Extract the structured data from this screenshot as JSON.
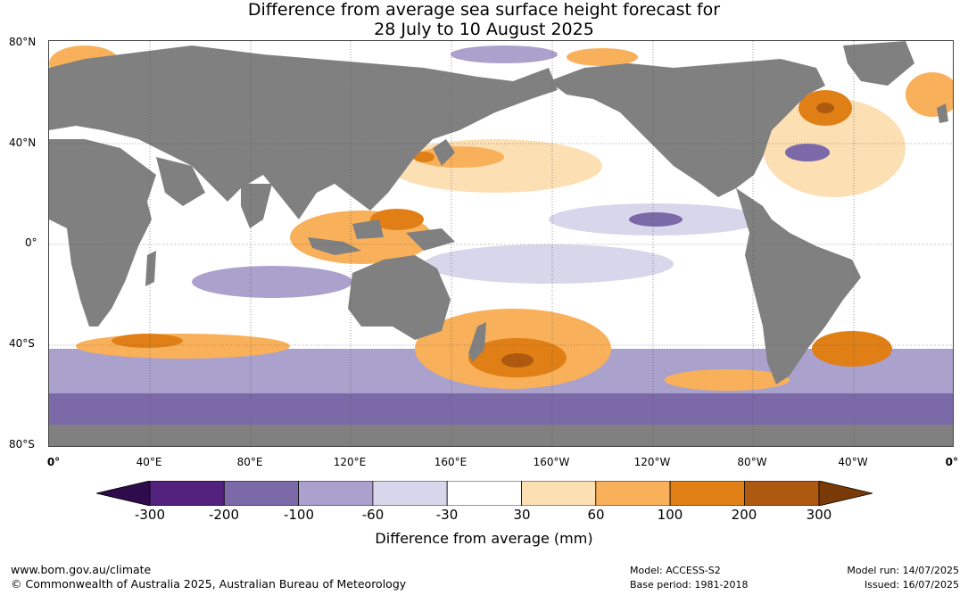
{
  "title": {
    "line1": "Difference from average sea surface height forecast for",
    "line2": "28 July to 10 August 2025"
  },
  "lat_labels": [
    "80°N",
    "40°N",
    "0°",
    "40°S",
    "80°S"
  ],
  "lon_labels": [
    "0°",
    "40°E",
    "80°E",
    "120°E",
    "160°E",
    "160°W",
    "120°W",
    "80°W",
    "40°W",
    "0°"
  ],
  "colorbar": {
    "ticks": [
      "-300",
      "-200",
      "-100",
      "-60",
      "-30",
      "30",
      "60",
      "100",
      "200",
      "300"
    ],
    "label": "Difference from average (mm)",
    "colors": [
      "#2e0b4a",
      "#52227d",
      "#7c69a8",
      "#aaa1cc",
      "#d8d6ea",
      "#ffffff",
      "#fddfb4",
      "#f9b05a",
      "#e07f16",
      "#ad5a10",
      "#7a3a08"
    ]
  },
  "map_colors": {
    "land": "#808080",
    "grid": "#555555"
  },
  "footer": {
    "url": "www.bom.gov.au/climate",
    "copyright": "© Commonwealth of Australia 2025, Australian Bureau of Meteorology",
    "model": "Model: ACCESS-S2",
    "base_period": "Base period: 1981-2018",
    "model_run": "Model run: 14/07/2025",
    "issued": "Issued: 16/07/2025"
  }
}
